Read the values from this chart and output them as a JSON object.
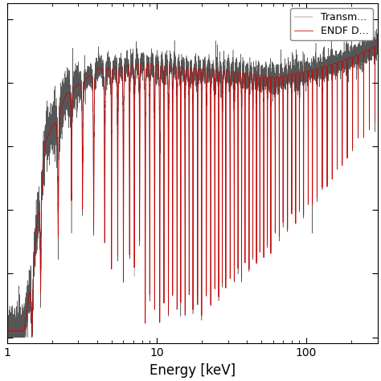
{
  "xlabel": "Energy [keV]",
  "xlim": [
    1.0,
    300.0
  ],
  "ylim": [
    -0.02,
    1.05
  ],
  "legend_labels": [
    "Transm...",
    "ENDF D..."
  ],
  "exp_color": "#444444",
  "calc_color": "#cc0000",
  "background_color": "#ffffff",
  "xlabel_fontsize": 12,
  "legend_fontsize": 9,
  "tick_labelsize": 10
}
